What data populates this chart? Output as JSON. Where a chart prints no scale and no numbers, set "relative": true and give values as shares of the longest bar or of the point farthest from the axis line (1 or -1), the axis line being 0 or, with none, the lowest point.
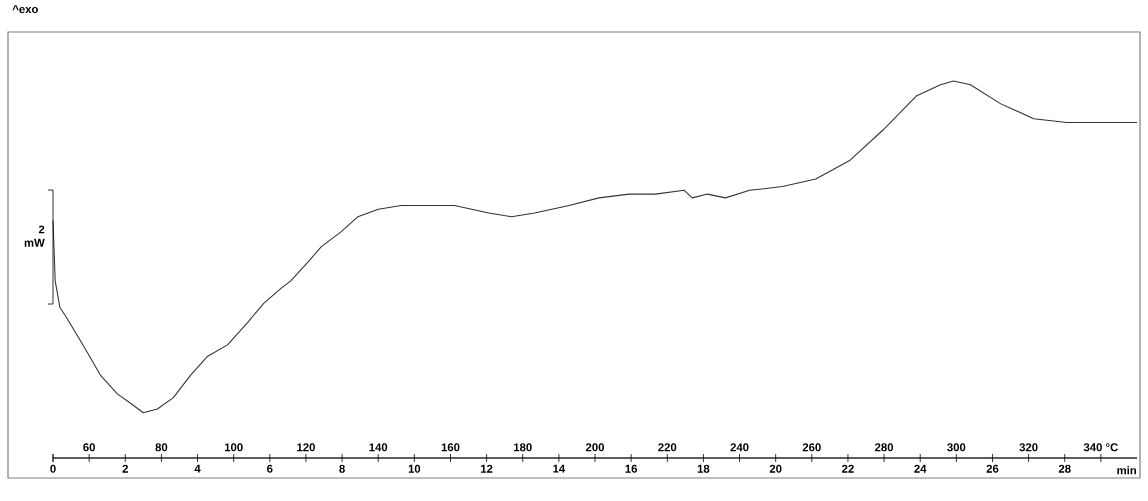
{
  "chart_data": {
    "type": "line",
    "xlabel": "min",
    "relative": true,
    "annotations": [
      "^exo",
      "2 mW"
    ],
    "xlim": [
      0,
      30
    ],
    "xticks": [
      0,
      2,
      4,
      6,
      8,
      10,
      12,
      14,
      16,
      18,
      20,
      22,
      24,
      26,
      28
    ],
    "x2lim": [
      50,
      350
    ],
    "x2ticks": [
      {
        "value": 50,
        "label": null
      },
      60,
      80,
      100,
      120,
      140,
      160,
      180,
      200,
      220,
      240,
      260,
      280,
      300,
      320,
      {
        "value": 340,
        "label": "340 °C"
      }
    ],
    "x": [
      0,
      0.06,
      0.19,
      0.39,
      0.83,
      1.31,
      1.78,
      2.22,
      2.5,
      2.89,
      3.33,
      3.81,
      4.28,
      4.83,
      5.39,
      5.83,
      6.31,
      6.58,
      7.06,
      7.42,
      7.97,
      8.44,
      9.0,
      9.64,
      10.28,
      11.11,
      12.06,
      12.69,
      13.33,
      14.28,
      15.11,
      15.94,
      16.67,
      17.47,
      17.69,
      18.11,
      18.61,
      19.28,
      20.19,
      21.11,
      22.06,
      22.97,
      23.89,
      24.56,
      24.92,
      25.39,
      26.22,
      27.14,
      28.06,
      29.44,
      30
    ],
    "series": [
      {
        "color": "#333333",
        "values": [
          0.63,
          0.47,
          0.4,
          0.37,
          0.3,
          0.22,
          0.17,
          0.14,
          0.12,
          0.13,
          0.16,
          0.22,
          0.27,
          0.3,
          0.36,
          0.41,
          0.45,
          0.47,
          0.52,
          0.56,
          0.6,
          0.64,
          0.66,
          0.67,
          0.67,
          0.67,
          0.65,
          0.64,
          0.65,
          0.67,
          0.69,
          0.7,
          0.7,
          0.71,
          0.69,
          0.7,
          0.69,
          0.71,
          0.72,
          0.74,
          0.79,
          0.87,
          0.96,
          0.99,
          1.0,
          0.99,
          0.94,
          0.9,
          0.89,
          0.89,
          0.89
        ]
      }
    ]
  }
}
